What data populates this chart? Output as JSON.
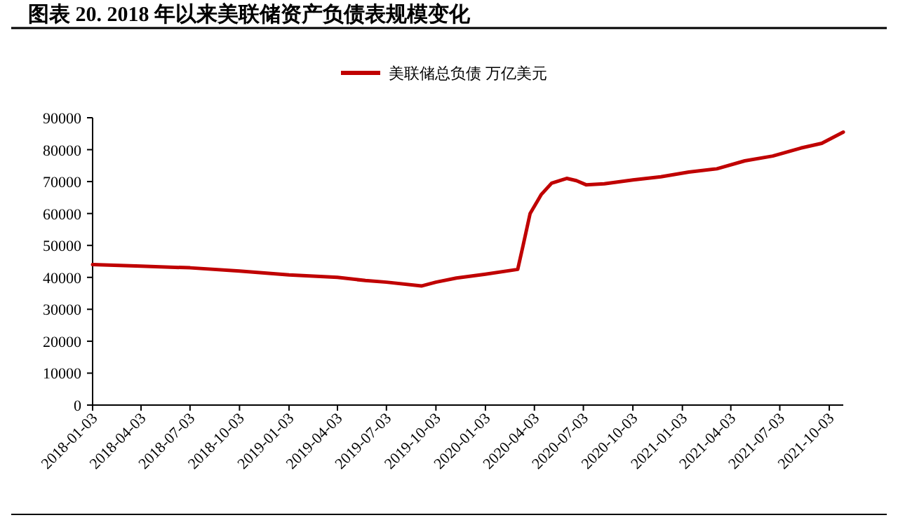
{
  "chart_data": {
    "type": "line",
    "title": "图表 20. 2018 年以来美联储资产负债表规模变化",
    "x": [
      "2018-01-03",
      "2018-04-03",
      "2018-07-03",
      "2018-10-03",
      "2019-01-03",
      "2019-04-03",
      "2019-05-25",
      "2019-07-03",
      "2019-09-06",
      "2019-10-03",
      "2019-11-10",
      "2020-01-03",
      "2020-03-03",
      "2020-03-13",
      "2020-03-26",
      "2020-04-16",
      "2020-05-05",
      "2020-06-02",
      "2020-06-20",
      "2020-07-08",
      "2020-08-11",
      "2020-10-03",
      "2020-11-24",
      "2021-01-15",
      "2021-03-08",
      "2021-04-29",
      "2021-06-20",
      "2021-08-11",
      "2021-09-19",
      "2021-10-29"
    ],
    "series": [
      {
        "name": "美联储总负债 万亿美元",
        "color": "#c00000",
        "values": [
          44000,
          43500,
          43000,
          42000,
          40800,
          40000,
          39000,
          38500,
          37300,
          38500,
          39800,
          41000,
          42500,
          50000,
          60000,
          66000,
          69500,
          71000,
          70300,
          69000,
          69300,
          70500,
          71500,
          73000,
          74000,
          76500,
          78000,
          80500,
          82000,
          85500
        ]
      }
    ],
    "xlim": [
      "2018-01-03",
      "2021-10-29"
    ],
    "xticks": [
      "2018-01-03",
      "2018-04-03",
      "2018-07-03",
      "2018-10-03",
      "2019-01-03",
      "2019-04-03",
      "2019-07-03",
      "2019-10-03",
      "2020-01-03",
      "2020-04-03",
      "2020-07-03",
      "2020-10-03",
      "2021-01-03",
      "2021-04-03",
      "2021-07-03",
      "2021-10-03"
    ],
    "ylim": [
      0,
      90000
    ],
    "yticks": [
      0,
      10000,
      20000,
      30000,
      40000,
      50000,
      60000,
      70000,
      80000,
      90000
    ],
    "grid": false,
    "legend": "top",
    "marker": "none",
    "line_style": "solid"
  }
}
